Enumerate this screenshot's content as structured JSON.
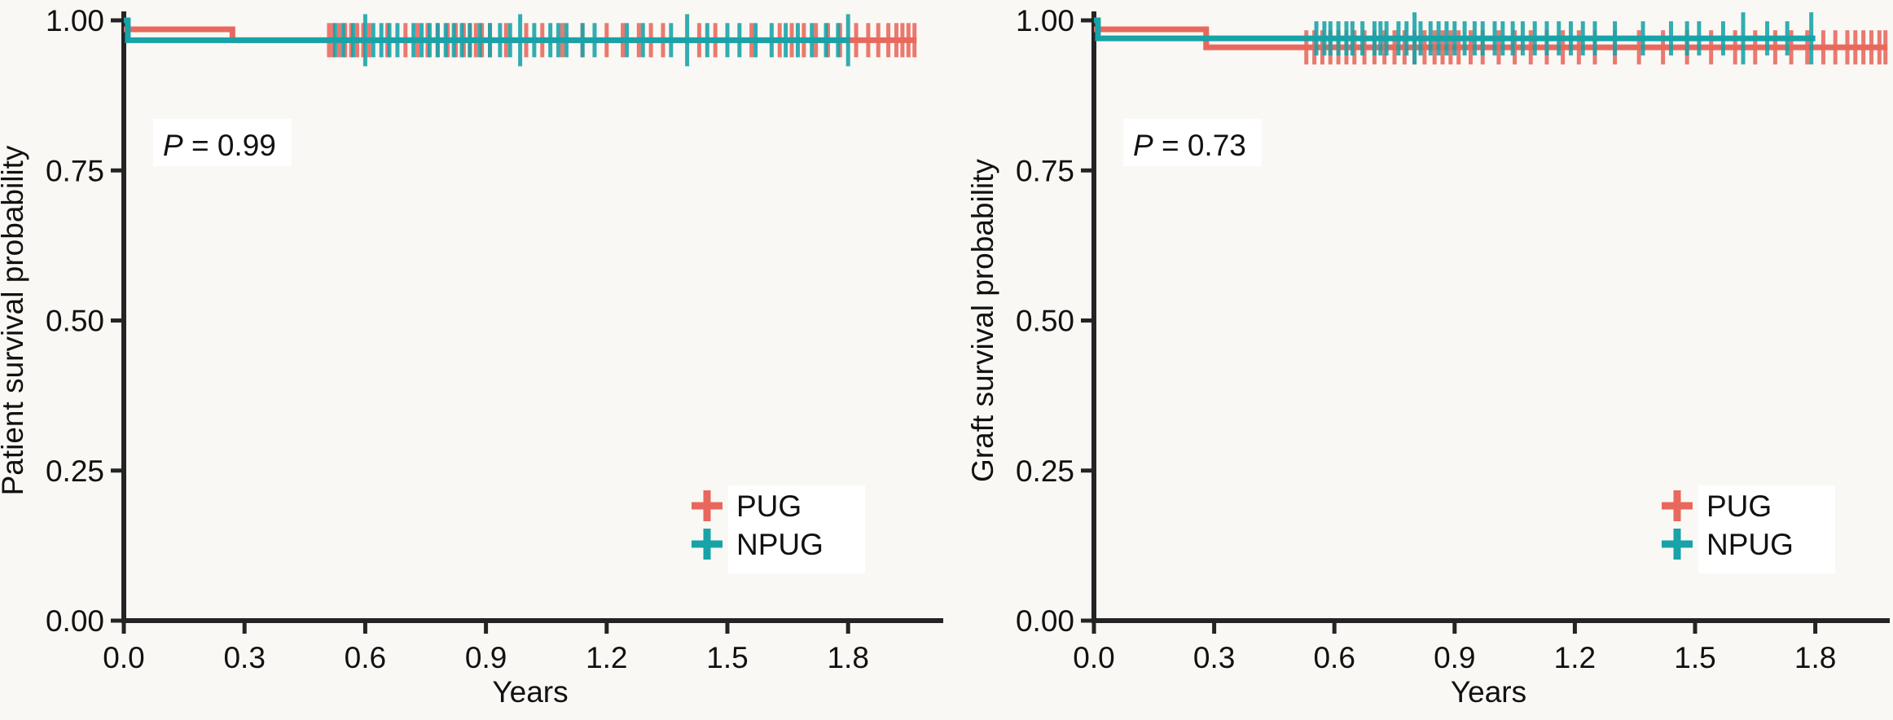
{
  "figure": {
    "background": "#faf8f4",
    "annotation_box_color": "#ffffff",
    "axis_color": "#242424",
    "text_color": "#111111"
  },
  "chart_data": [
    {
      "type": "line",
      "subtype": "kaplan-meier-survival",
      "panel": "left",
      "ylabel": "Patient survival probability",
      "xlabel": "Years",
      "xlim": [
        0,
        2.05
      ],
      "ylim": [
        0,
        1
      ],
      "grid": "off",
      "x_ticks": {
        "values": [
          0,
          0.3,
          0.6,
          0.9,
          1.2,
          1.5,
          1.8
        ],
        "labels": [
          "0.0",
          "0.3",
          "0.6",
          "0.9",
          "1.2",
          "1.5",
          "1.8"
        ]
      },
      "y_ticks": {
        "values": [
          1,
          0.75,
          0.5,
          0.25,
          0
        ],
        "labels": [
          "1.00",
          "0.75",
          "0.50",
          "0.25",
          "0.00"
        ]
      },
      "annotation": {
        "symbol": "P",
        "text": " = 0.99",
        "value": 0.99
      },
      "legend": {
        "position": "bottom-right",
        "items": [
          {
            "label": "PUG",
            "color": "#E8685D"
          },
          {
            "label": "NPUG",
            "color": "#17A3A8"
          }
        ]
      },
      "series": [
        {
          "name": "PUG",
          "color": "#E8685D",
          "steps": [
            [
              0,
              0.985
            ],
            [
              0.27,
              0.985
            ],
            [
              0.27,
              0.967
            ],
            [
              1.97,
              0.967
            ]
          ],
          "censor_level": 0.967,
          "censors": [
            0.51,
            0.52,
            0.535,
            0.55,
            0.565,
            0.58,
            0.595,
            0.61,
            0.655,
            0.7,
            0.73,
            0.755,
            0.78,
            0.805,
            0.825,
            0.845,
            0.86,
            0.875,
            0.89,
            0.91,
            0.95,
            1.0,
            1.04,
            1.09,
            1.14,
            1.2,
            1.24,
            1.28,
            1.31,
            1.34,
            1.43,
            1.47,
            1.56,
            1.63,
            1.66,
            1.69,
            1.72,
            1.75,
            1.78,
            1.82,
            1.85,
            1.875,
            1.9,
            1.92,
            1.935,
            1.95,
            1.965
          ],
          "tall_censors": []
        },
        {
          "name": "NPUG",
          "color": "#17A3A8",
          "steps": [
            [
              0,
              1.0
            ],
            [
              0.01,
              1.0
            ],
            [
              0.01,
              0.967
            ],
            [
              1.8,
              0.967
            ]
          ],
          "censor_level": 0.967,
          "censors": [
            0.525,
            0.545,
            0.57,
            0.6,
            0.62,
            0.64,
            0.66,
            0.68,
            0.72,
            0.74,
            0.76,
            0.78,
            0.8,
            0.82,
            0.84,
            0.86,
            0.885,
            0.91,
            0.935,
            0.96,
            0.985,
            1.02,
            1.06,
            1.08,
            1.1,
            1.14,
            1.17,
            1.25,
            1.29,
            1.36,
            1.4,
            1.45,
            1.5,
            1.53,
            1.57,
            1.61,
            1.645,
            1.675,
            1.71,
            1.745,
            1.775,
            1.8
          ],
          "tall_censors": [
            0.6,
            0.985,
            1.4,
            1.8
          ]
        }
      ]
    },
    {
      "type": "line",
      "subtype": "kaplan-meier-survival",
      "panel": "right",
      "ylabel": "Graft survival probability",
      "xlabel": "Years",
      "xlim": [
        0,
        2.05
      ],
      "ylim": [
        0,
        1
      ],
      "grid": "off",
      "x_ticks": {
        "values": [
          0,
          0.3,
          0.6,
          0.9,
          1.2,
          1.5,
          1.8
        ],
        "labels": [
          "0.0",
          "0.3",
          "0.6",
          "0.9",
          "1.2",
          "1.5",
          "1.8"
        ]
      },
      "y_ticks": {
        "values": [
          1,
          0.75,
          0.5,
          0.25,
          0
        ],
        "labels": [
          "1.00",
          "0.75",
          "0.50",
          "0.25",
          "0.00"
        ]
      },
      "annotation": {
        "symbol": "P",
        "text": " = 0.73",
        "value": 0.73
      },
      "legend": {
        "position": "bottom-right",
        "items": [
          {
            "label": "PUG",
            "color": "#E8685D"
          },
          {
            "label": "NPUG",
            "color": "#17A3A8"
          }
        ]
      },
      "series": [
        {
          "name": "PUG",
          "color": "#E8685D",
          "steps": [
            [
              0,
              0.985
            ],
            [
              0.28,
              0.985
            ],
            [
              0.28,
              0.955
            ],
            [
              1.98,
              0.955
            ]
          ],
          "censor_level": 0.955,
          "censors": [
            0.53,
            0.55,
            0.57,
            0.59,
            0.61,
            0.63,
            0.65,
            0.675,
            0.7,
            0.725,
            0.75,
            0.775,
            0.8,
            0.825,
            0.85,
            0.87,
            0.89,
            0.91,
            0.94,
            0.97,
            1.01,
            1.05,
            1.09,
            1.13,
            1.17,
            1.21,
            1.25,
            1.3,
            1.36,
            1.42,
            1.48,
            1.54,
            1.6,
            1.65,
            1.7,
            1.74,
            1.78,
            1.82,
            1.85,
            1.88,
            1.9,
            1.92,
            1.94,
            1.96,
            1.975
          ],
          "tall_censors": []
        },
        {
          "name": "NPUG",
          "color": "#17A3A8",
          "steps": [
            [
              0,
              1.0
            ],
            [
              0.01,
              1.0
            ],
            [
              0.01,
              0.97
            ],
            [
              1.8,
              0.97
            ]
          ],
          "censor_level": 0.97,
          "censors": [
            0.555,
            0.575,
            0.59,
            0.61,
            0.63,
            0.645,
            0.67,
            0.7,
            0.715,
            0.73,
            0.76,
            0.78,
            0.8,
            0.815,
            0.84,
            0.86,
            0.88,
            0.9,
            0.925,
            0.95,
            0.97,
            1.0,
            1.02,
            1.045,
            1.07,
            1.1,
            1.13,
            1.16,
            1.19,
            1.22,
            1.25,
            1.3,
            1.37,
            1.44,
            1.48,
            1.51,
            1.57,
            1.62,
            1.68,
            1.73,
            1.79
          ],
          "tall_censors": [
            0.8,
            0.82,
            1.62,
            1.79
          ]
        }
      ]
    }
  ]
}
